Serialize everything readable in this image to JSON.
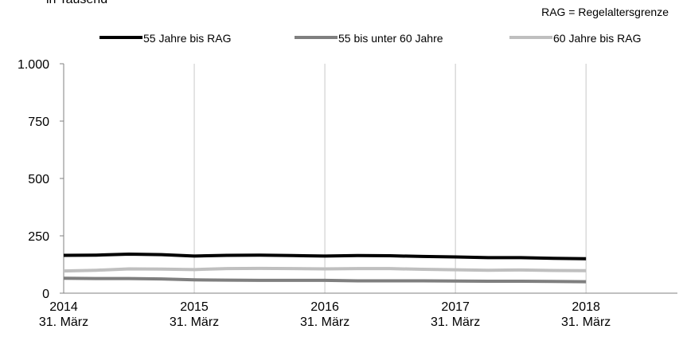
{
  "chart_data": {
    "type": "line",
    "subtitle": "in Tausend",
    "note": "RAG = Regelaltersgrenze",
    "x": [
      2014,
      2014.25,
      2014.5,
      2014.75,
      2015,
      2015.25,
      2015.5,
      2015.75,
      2016,
      2016.25,
      2016.5,
      2016.75,
      2017,
      2017.25,
      2017.5,
      2017.75,
      2018
    ],
    "series": [
      {
        "name": "55 Jahre bis RAG",
        "color": "#000000",
        "values": [
          165,
          166,
          170,
          168,
          162,
          165,
          166,
          164,
          162,
          164,
          163,
          160,
          158,
          155,
          155,
          152,
          150
        ]
      },
      {
        "name": "55 bis unter 60 Jahre",
        "color": "#7f7f7f",
        "values": [
          65,
          64,
          64,
          62,
          58,
          57,
          56,
          56,
          56,
          54,
          54,
          54,
          53,
          52,
          52,
          51,
          50
        ]
      },
      {
        "name": "60 Jahre bis RAG",
        "color": "#bfbfbf",
        "values": [
          97,
          100,
          106,
          105,
          103,
          107,
          108,
          107,
          106,
          107,
          107,
          104,
          102,
          100,
          101,
          99,
          98
        ]
      }
    ],
    "xlim": [
      2014,
      2018.7
    ],
    "xticks": [
      {
        "value": 2014,
        "label": "2014\n31. März"
      },
      {
        "value": 2015,
        "label": "2015\n31. März"
      },
      {
        "value": 2016,
        "label": "2016\n31. März"
      },
      {
        "value": 2017,
        "label": "2017\n31. März"
      },
      {
        "value": 2018,
        "label": "2018\n31. März"
      }
    ],
    "ylim": [
      0,
      1000
    ],
    "yticks": [
      0,
      250,
      500,
      750,
      {
        "value": 1000,
        "label": "1.000"
      }
    ],
    "grid": "x"
  }
}
